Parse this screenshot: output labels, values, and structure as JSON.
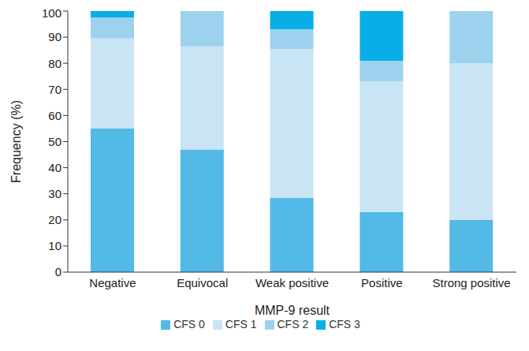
{
  "chart_data": {
    "type": "bar",
    "stacked": true,
    "x_label": "MMP-9 result",
    "y_label": "Frequency (%)",
    "categories": [
      "Negative",
      "Equivocal",
      "Weak positive",
      "Positive",
      "Strong positive"
    ],
    "series": [
      {
        "name": "CFS 0",
        "color": "#53b9e6",
        "values": [
          55,
          47,
          28.5,
          23,
          20
        ]
      },
      {
        "name": "CFS 1",
        "color": "#c9e5f5",
        "values": [
          34.5,
          39.5,
          57,
          50,
          60
        ]
      },
      {
        "name": "CFS 2",
        "color": "#9dd2ef",
        "values": [
          8,
          13.5,
          7.5,
          8,
          20
        ]
      },
      {
        "name": "CFS 3",
        "color": "#0aaee6",
        "values": [
          2.5,
          0,
          7,
          19,
          0
        ]
      }
    ],
    "ylim": [
      0,
      100
    ],
    "yticks": [
      0,
      10,
      20,
      30,
      40,
      50,
      60,
      70,
      80,
      90,
      100
    ],
    "grid": false,
    "legend": "bottom"
  }
}
